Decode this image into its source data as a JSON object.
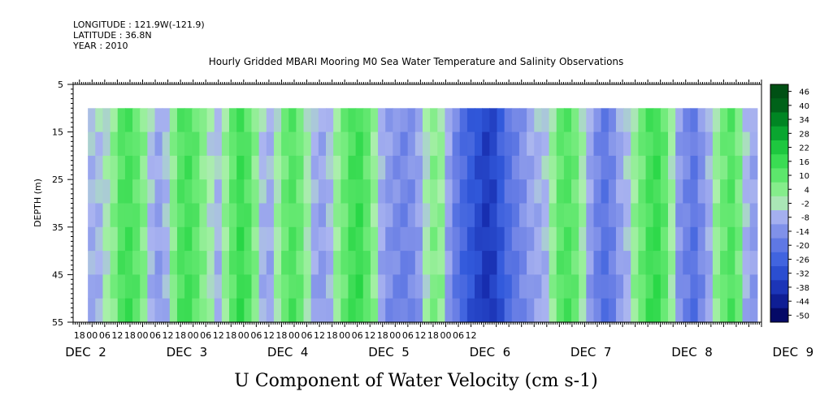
{
  "header": {
    "longitude": "LONGITUDE : 121.9W(-121.9)",
    "latitude": "LATITUDE : 36.8N",
    "year": "YEAR : 2010",
    "title": "Hourly Gridded MBARI Mooring M0 Sea Water Temperature and Salinity Observations"
  },
  "chart_data": {
    "type": "heatmap",
    "title": "U Component of Water Velocity (cm s-1)",
    "ylabel": "DEPTH (m)",
    "xlabel": "",
    "ylim": [
      55,
      5
    ],
    "y_ticks": [
      "5",
      "15",
      "25",
      "35",
      "45",
      "55"
    ],
    "x_tick_labels": [
      "18",
      "00",
      "06",
      "12",
      "18",
      "00",
      "06",
      "12",
      "18",
      "00",
      "06",
      "12",
      "18",
      "00",
      "06",
      "12",
      "18",
      "00",
      "06",
      "12",
      "18",
      "00",
      "06",
      "12",
      "18",
      "00",
      "06",
      "12",
      "18",
      "00",
      "06",
      "12"
    ],
    "day_labels": [
      "DEC  2",
      "DEC  3",
      "DEC  4",
      "DEC  5",
      "DEC  6",
      "DEC  7",
      "DEC  8",
      "DEC  9"
    ],
    "x_range_hours": [
      -9,
      318
    ],
    "data_depth_range": [
      10,
      55
    ],
    "data_time_range_hours": [
      -2,
      316
    ],
    "column_values": [
      -3,
      -2,
      0,
      6,
      14,
      16,
      12,
      6,
      -2,
      -6,
      -2,
      6,
      14,
      16,
      12,
      6,
      0,
      -2,
      4,
      12,
      18,
      14,
      6,
      -2,
      -4,
      2,
      10,
      14,
      10,
      2,
      -4,
      -6,
      -2,
      4,
      10,
      16,
      18,
      12,
      4,
      -4,
      -8,
      -10,
      -12,
      -10,
      -6,
      0,
      6,
      4,
      -6,
      -14,
      -20,
      -24,
      -28,
      -32,
      -30,
      -24,
      -18,
      -14,
      -10,
      -6,
      -4,
      -2,
      4,
      12,
      14,
      10,
      2,
      -6,
      -12,
      -16,
      -12,
      -6,
      -2,
      4,
      10,
      16,
      18,
      12,
      2,
      -8,
      -12,
      -16,
      -10,
      -4,
      4,
      10,
      14,
      8,
      -2,
      -6
    ],
    "colorbar": {
      "labels": [
        "46",
        "40",
        "34",
        "28",
        "22",
        "16",
        "10",
        "4",
        "-2",
        "-8",
        "-14",
        "-20",
        "-26",
        "-32",
        "-38",
        "-44",
        "-50"
      ],
      "min": -50,
      "max": 46
    },
    "grid": false,
    "legend_position": "right"
  }
}
